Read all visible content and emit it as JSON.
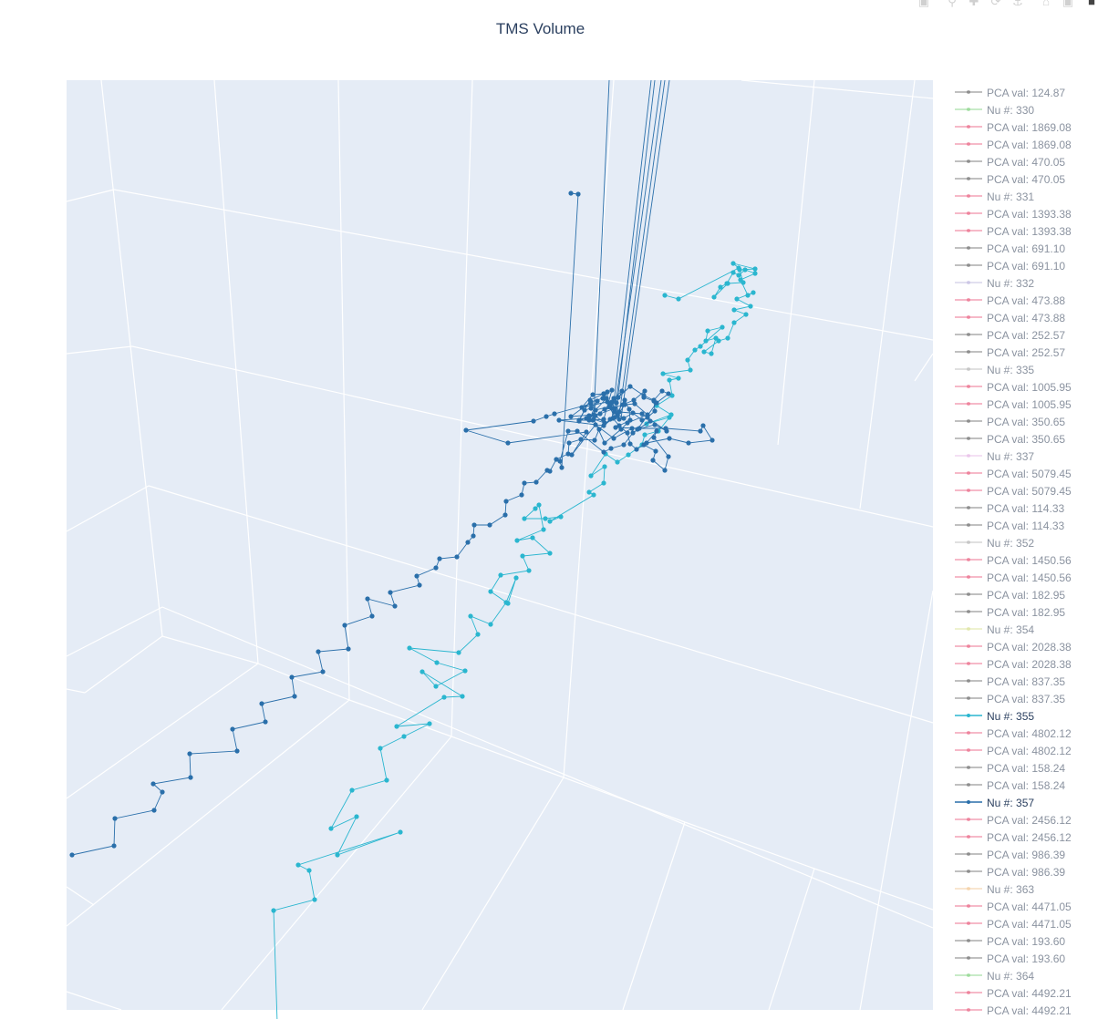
{
  "chart_data": {
    "type": "line3d",
    "title": "TMS Volume",
    "legend_position": "right",
    "grid": true,
    "background": "#e5ecf6",
    "series": [
      {
        "name": "PCA val: 124.87",
        "color": "#666666",
        "visible": "legendonly"
      },
      {
        "name": "Nu #: 330",
        "color": "#7ccf7a",
        "visible": "legendonly"
      },
      {
        "name": "PCA val: 1869.08",
        "color": "#e8577a",
        "visible": "legendonly"
      },
      {
        "name": "PCA val: 1869.08",
        "color": "#e8577a",
        "visible": "legendonly"
      },
      {
        "name": "PCA val: 470.05",
        "color": "#666666",
        "visible": "legendonly"
      },
      {
        "name": "PCA val: 470.05",
        "color": "#666666",
        "visible": "legendonly"
      },
      {
        "name": "Nu #: 331",
        "color": "#e8577a",
        "visible": "legendonly"
      },
      {
        "name": "PCA val: 1393.38",
        "color": "#e8577a",
        "visible": "legendonly"
      },
      {
        "name": "PCA val: 1393.38",
        "color": "#e8577a",
        "visible": "legendonly"
      },
      {
        "name": "PCA val: 691.10",
        "color": "#666666",
        "visible": "legendonly"
      },
      {
        "name": "PCA val: 691.10",
        "color": "#666666",
        "visible": "legendonly"
      },
      {
        "name": "Nu #: 332",
        "color": "#b9b3dc",
        "visible": "legendonly"
      },
      {
        "name": "PCA val: 473.88",
        "color": "#e8577a",
        "visible": "legendonly"
      },
      {
        "name": "PCA val: 473.88",
        "color": "#e8577a",
        "visible": "legendonly"
      },
      {
        "name": "PCA val: 252.57",
        "color": "#666666",
        "visible": "legendonly"
      },
      {
        "name": "PCA val: 252.57",
        "color": "#666666",
        "visible": "legendonly"
      },
      {
        "name": "Nu #: 335",
        "color": "#b3b3b3",
        "visible": "legendonly"
      },
      {
        "name": "PCA val: 1005.95",
        "color": "#e8577a",
        "visible": "legendonly"
      },
      {
        "name": "PCA val: 1005.95",
        "color": "#e8577a",
        "visible": "legendonly"
      },
      {
        "name": "PCA val: 350.65",
        "color": "#666666",
        "visible": "legendonly"
      },
      {
        "name": "PCA val: 350.65",
        "color": "#666666",
        "visible": "legendonly"
      },
      {
        "name": "Nu #: 337",
        "color": "#e3b3e3",
        "visible": "legendonly"
      },
      {
        "name": "PCA val: 5079.45",
        "color": "#e8577a",
        "visible": "legendonly"
      },
      {
        "name": "PCA val: 5079.45",
        "color": "#e8577a",
        "visible": "legendonly"
      },
      {
        "name": "PCA val: 114.33",
        "color": "#666666",
        "visible": "legendonly"
      },
      {
        "name": "PCA val: 114.33",
        "color": "#666666",
        "visible": "legendonly"
      },
      {
        "name": "Nu #: 352",
        "color": "#b3b3b3",
        "visible": "legendonly"
      },
      {
        "name": "PCA val: 1450.56",
        "color": "#e8577a",
        "visible": "legendonly"
      },
      {
        "name": "PCA val: 1450.56",
        "color": "#e8577a",
        "visible": "legendonly"
      },
      {
        "name": "PCA val: 182.95",
        "color": "#666666",
        "visible": "legendonly"
      },
      {
        "name": "PCA val: 182.95",
        "color": "#666666",
        "visible": "legendonly"
      },
      {
        "name": "Nu #: 354",
        "color": "#d7df8f",
        "visible": "legendonly"
      },
      {
        "name": "PCA val: 2028.38",
        "color": "#e8577a",
        "visible": "legendonly"
      },
      {
        "name": "PCA val: 2028.38",
        "color": "#e8577a",
        "visible": "legendonly"
      },
      {
        "name": "PCA val: 837.35",
        "color": "#666666",
        "visible": "legendonly"
      },
      {
        "name": "PCA val: 837.35",
        "color": "#666666",
        "visible": "legendonly"
      },
      {
        "name": "Nu #: 355",
        "color": "#2ab6cf",
        "visible": true
      },
      {
        "name": "PCA val: 4802.12",
        "color": "#e8577a",
        "visible": "legendonly"
      },
      {
        "name": "PCA val: 4802.12",
        "color": "#e8577a",
        "visible": "legendonly"
      },
      {
        "name": "PCA val: 158.24",
        "color": "#666666",
        "visible": "legendonly"
      },
      {
        "name": "PCA val: 158.24",
        "color": "#666666",
        "visible": "legendonly"
      },
      {
        "name": "Nu #: 357",
        "color": "#2a6faa",
        "visible": true
      },
      {
        "name": "PCA val: 2456.12",
        "color": "#e8577a",
        "visible": "legendonly"
      },
      {
        "name": "PCA val: 2456.12",
        "color": "#e8577a",
        "visible": "legendonly"
      },
      {
        "name": "PCA val: 986.39",
        "color": "#666666",
        "visible": "legendonly"
      },
      {
        "name": "PCA val: 986.39",
        "color": "#666666",
        "visible": "legendonly"
      },
      {
        "name": "Nu #: 363",
        "color": "#f2c48f",
        "visible": "legendonly"
      },
      {
        "name": "PCA val: 4471.05",
        "color": "#e8577a",
        "visible": "legendonly"
      },
      {
        "name": "PCA val: 4471.05",
        "color": "#e8577a",
        "visible": "legendonly"
      },
      {
        "name": "PCA val: 193.60",
        "color": "#666666",
        "visible": "legendonly"
      },
      {
        "name": "PCA val: 193.60",
        "color": "#666666",
        "visible": "legendonly"
      },
      {
        "name": "Nu #: 364",
        "color": "#7ccf7a",
        "visible": "legendonly"
      },
      {
        "name": "PCA val: 4492.21",
        "color": "#e8577a",
        "visible": "legendonly"
      },
      {
        "name": "PCA val: 4492.21",
        "color": "#e8577a",
        "visible": "legendonly"
      }
    ]
  },
  "modebar": {
    "icons": [
      "camera-icon",
      "zoom-icon",
      "pan-icon",
      "orbit-icon",
      "turntable-icon",
      "home-icon",
      "video-icon",
      "plotly-logo-icon"
    ]
  }
}
